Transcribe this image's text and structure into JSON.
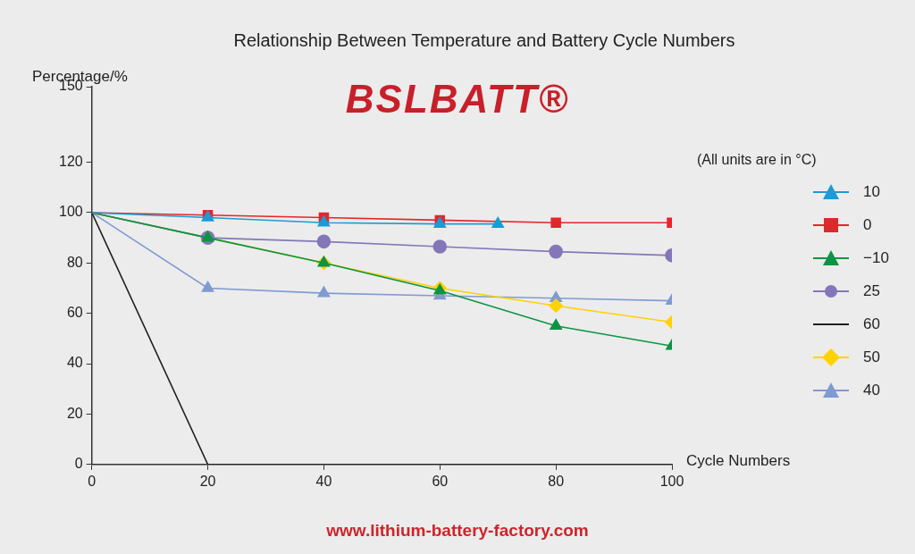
{
  "chart_data": {
    "type": "line",
    "title": "Relationship Between Temperature and Battery Cycle Numbers",
    "logo": "BSLBATT®",
    "note": "(All units are in °C)",
    "x_label": "Cycle Numbers",
    "y_label": "Percentage/%",
    "footer": "www.lithium-battery-factory.com",
    "xlim": [
      0,
      100
    ],
    "xticks": [
      0,
      20,
      40,
      60,
      80,
      100
    ],
    "ylim": [
      0,
      150
    ],
    "yticks": [
      0,
      20,
      40,
      60,
      80,
      100,
      120,
      150
    ],
    "grid": false,
    "legend": "right",
    "series": [
      {
        "name": "10",
        "color": "#1b9bd7",
        "marker": "triangle",
        "x": [
          0,
          20,
          40,
          60,
          70
        ],
        "values": [
          100,
          98,
          96,
          95.5,
          95.5
        ]
      },
      {
        "name": "0",
        "color": "#e3262b",
        "marker": "square",
        "x": [
          0,
          20,
          40,
          60,
          80,
          100
        ],
        "values": [
          100,
          99,
          98,
          97,
          96,
          96
        ]
      },
      {
        "name": "−10",
        "color": "#0c9444",
        "marker": "triangle",
        "x": [
          0,
          20,
          40,
          60,
          80,
          100
        ],
        "values": [
          100,
          90,
          80,
          69,
          55,
          47
        ]
      },
      {
        "name": "25",
        "color": "#8477b8",
        "marker": "circle",
        "x": [
          0,
          20,
          40,
          60,
          80,
          100
        ],
        "values": [
          100,
          90,
          88.5,
          86.5,
          84.5,
          83
        ]
      },
      {
        "name": "60",
        "color": "#231f20",
        "marker": "none",
        "x": [
          0,
          20,
          40,
          60,
          80,
          100
        ],
        "values": [
          100,
          0,
          0,
          0,
          0,
          0
        ]
      },
      {
        "name": "50",
        "color": "#ffd200",
        "marker": "diamond",
        "x": [
          0,
          20,
          40,
          60,
          80,
          100
        ],
        "values": [
          100,
          90,
          80,
          70,
          63,
          56.5
        ]
      },
      {
        "name": "40",
        "color": "#7f9bd0",
        "marker": "triangle",
        "x": [
          0,
          20,
          40,
          60,
          80,
          100
        ],
        "values": [
          100,
          70,
          68,
          67,
          66,
          65
        ]
      }
    ]
  }
}
